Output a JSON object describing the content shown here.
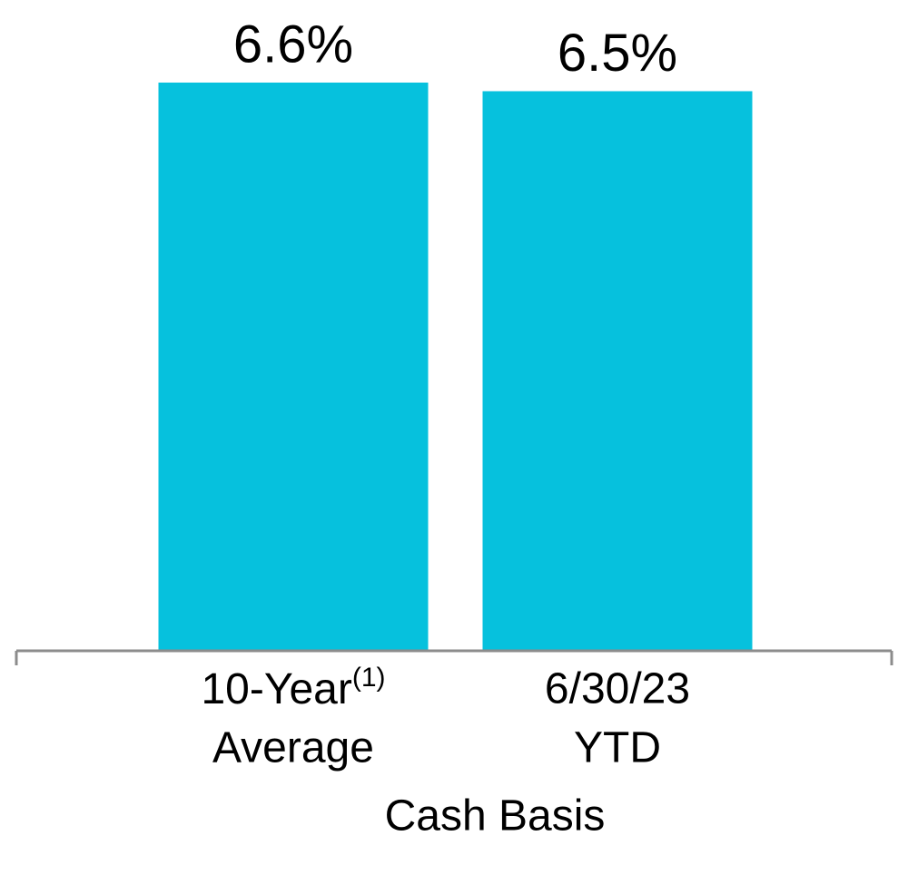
{
  "chart_data": {
    "type": "bar",
    "categories": [
      [
        "10-Year",
        "Average"
      ],
      [
        "6/30/23",
        "YTD"
      ]
    ],
    "category_superscripts": [
      "(1)",
      null
    ],
    "values": [
      6.6,
      6.5
    ],
    "value_labels": [
      "6.6%",
      "6.5%"
    ],
    "color": "#06c1dd",
    "xlabel": "Cash Basis",
    "ylim": [
      0,
      7
    ]
  }
}
